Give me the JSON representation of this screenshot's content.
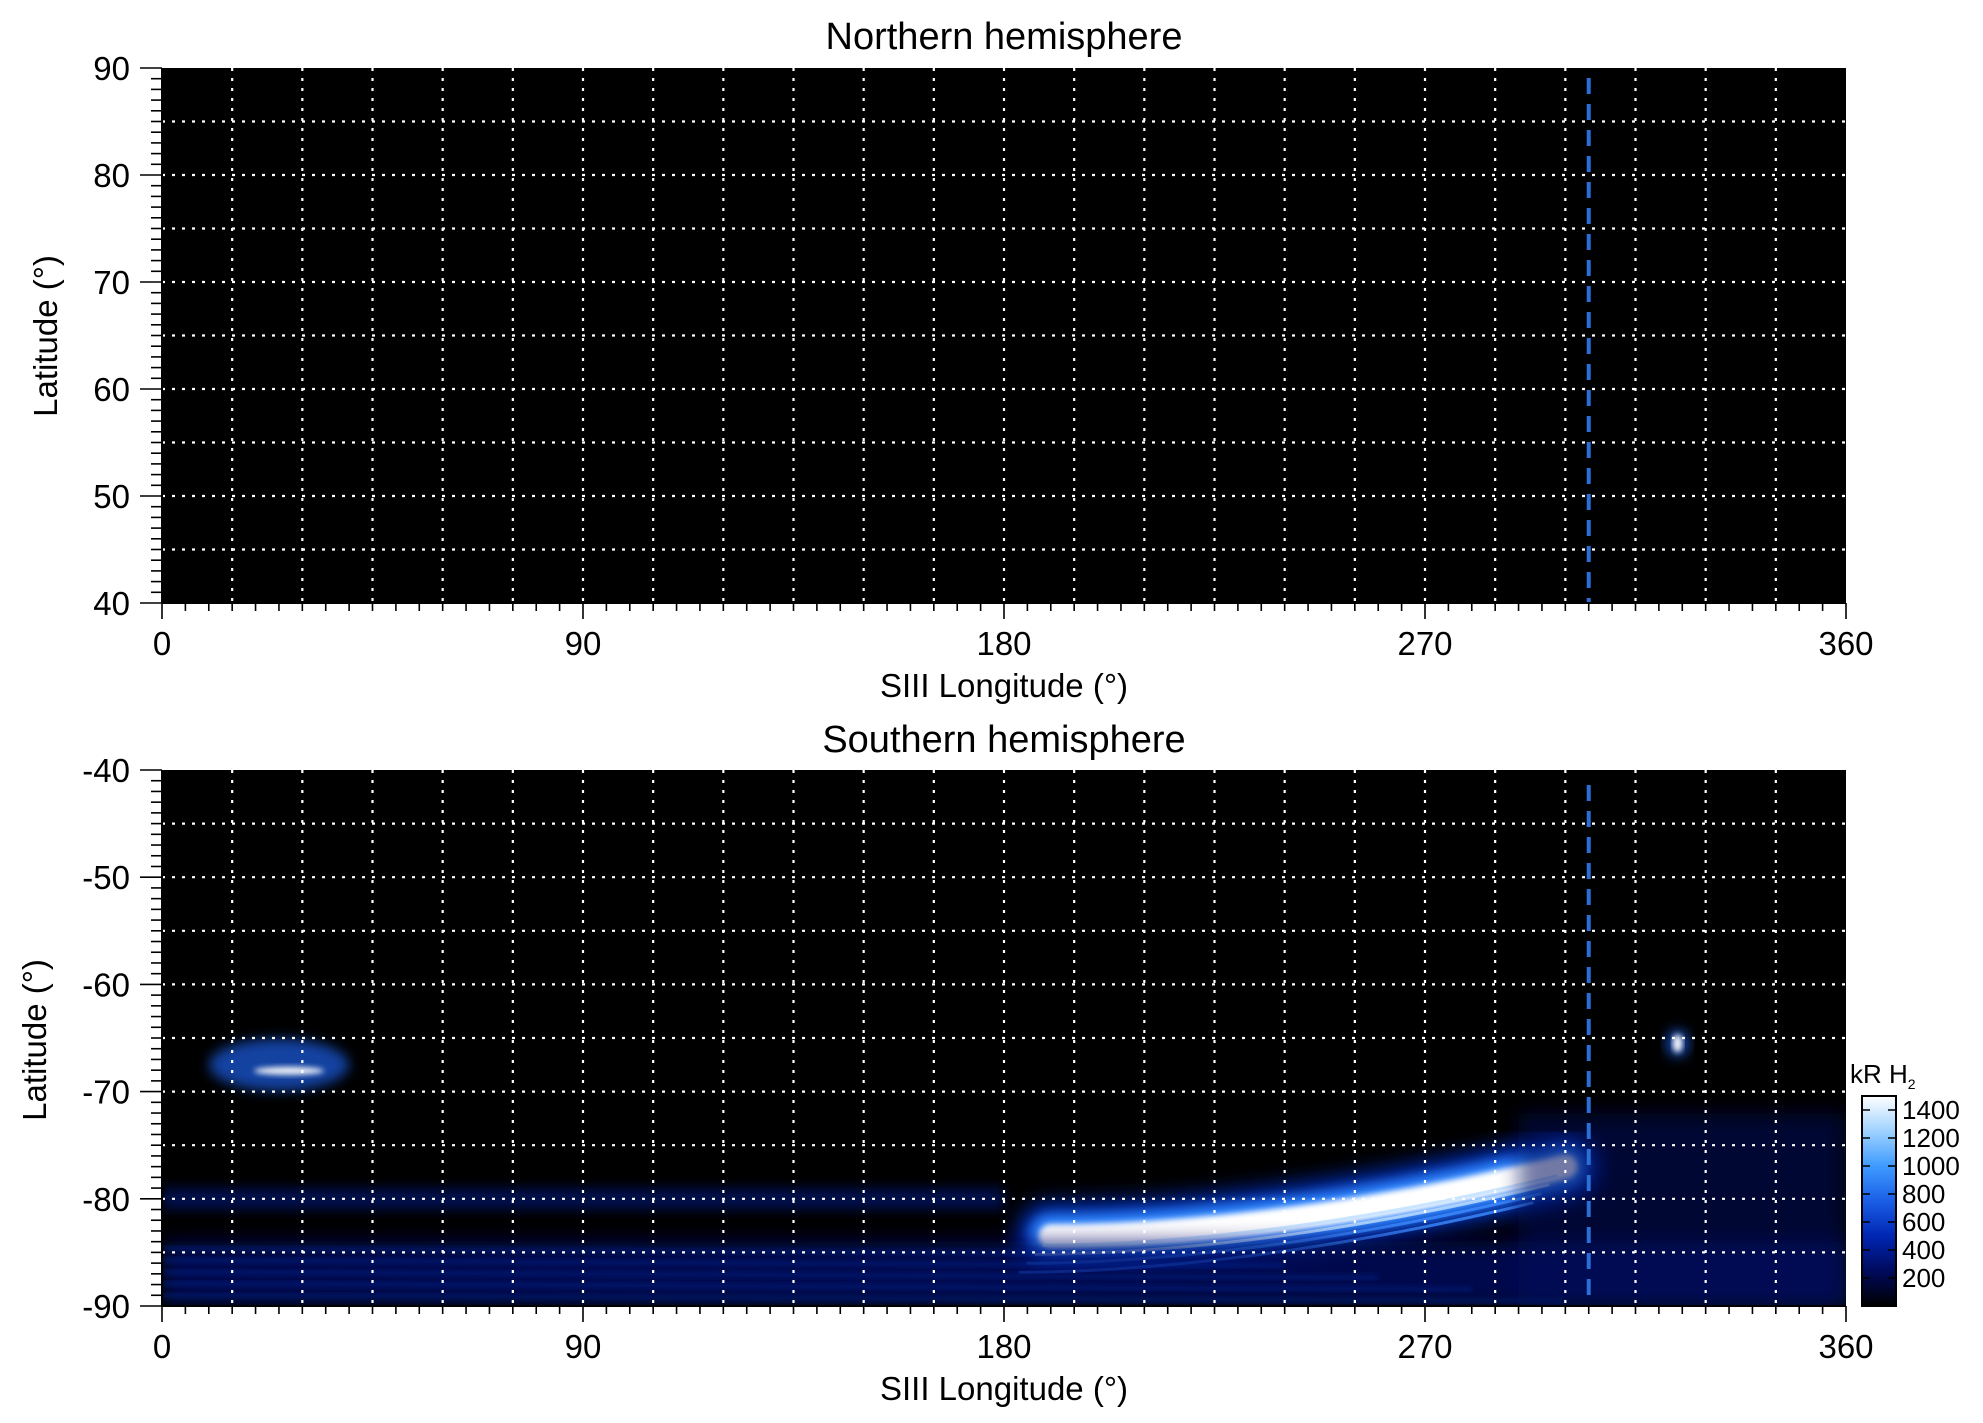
{
  "chart_data": [
    {
      "type": "heatmap",
      "title": "Northern hemisphere",
      "xlabel": "SIII Longitude (°)",
      "ylabel": "Latitude (°)",
      "xlim": [
        0,
        360
      ],
      "ylim": [
        40,
        90
      ],
      "xticks": [
        0,
        90,
        180,
        270,
        360
      ],
      "yticks": [
        40,
        50,
        60,
        70,
        80,
        90
      ],
      "xgrid_step": 15,
      "ygrid_step": 5,
      "grid": true,
      "background_color": "#000000",
      "grid_color": "#ffffff",
      "marker_line": {
        "x": 305,
        "style": "dashed",
        "color": "#2a6fd6"
      },
      "emission_regions": []
    },
    {
      "type": "heatmap",
      "title": "Southern hemisphere",
      "xlabel": "SIII Longitude (°)",
      "ylabel": "Latitude (°)",
      "xlim": [
        0,
        360
      ],
      "ylim": [
        -90,
        -40
      ],
      "xticks": [
        0,
        90,
        180,
        270,
        360
      ],
      "yticks": [
        -40,
        -50,
        -60,
        -70,
        -80,
        -90
      ],
      "xgrid_step": 15,
      "ygrid_step": 5,
      "grid": true,
      "background_color": "#000000",
      "grid_color": "#ffffff",
      "marker_line": {
        "x": 305,
        "style": "dashed",
        "color": "#2a6fd6"
      },
      "emission_regions": [
        {
          "name": "main-oval-arc",
          "lon_start": 190,
          "lon_end": 300,
          "lat_start": -83.5,
          "lat_end": -77,
          "peak_kR": 1400
        },
        {
          "name": "spot-near-30",
          "lon_center": 25,
          "lat_center": -67.5,
          "peak_kR": 1000
        },
        {
          "name": "spot-near-325",
          "lon_center": 324,
          "lat_center": -65.5,
          "peak_kR": 1400
        },
        {
          "name": "diffuse-polar-band",
          "lon_start": 0,
          "lon_end": 360,
          "lat_start": -90,
          "lat_end": -84,
          "peak_kR": 400
        }
      ],
      "colorbar": {
        "label": "kR H",
        "label_subscript": "2",
        "ticks": [
          200,
          400,
          600,
          800,
          1000,
          1200,
          1400
        ],
        "range": [
          0,
          1500
        ],
        "colors": [
          "#000000",
          "#000a5c",
          "#0026b3",
          "#1a5ee6",
          "#3f9bff",
          "#9fd2ff",
          "#ffffff"
        ]
      }
    }
  ]
}
